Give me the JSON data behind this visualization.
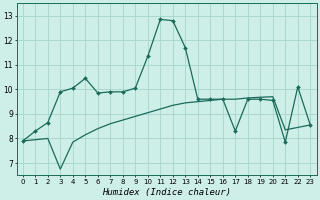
{
  "title": "",
  "xlabel": "Humidex (Indice chaleur)",
  "background_color": "#ceeee8",
  "grid_color": "#aad8d0",
  "line_color": "#1a6b5a",
  "xlim": [
    -0.5,
    23.5
  ],
  "ylim": [
    6.5,
    13.5
  ],
  "yticks": [
    7,
    8,
    9,
    10,
    11,
    12,
    13
  ],
  "xticks": [
    0,
    1,
    2,
    3,
    4,
    5,
    6,
    7,
    8,
    9,
    10,
    11,
    12,
    13,
    14,
    15,
    16,
    17,
    18,
    19,
    20,
    21,
    22,
    23
  ],
  "series1_x": [
    0,
    1,
    2,
    3,
    4,
    5,
    6,
    7,
    8,
    9,
    10,
    11,
    12,
    13,
    14,
    15,
    16,
    17,
    18,
    19,
    20,
    21,
    22,
    23
  ],
  "series1_y": [
    7.9,
    8.3,
    8.65,
    9.9,
    10.05,
    10.45,
    9.85,
    9.9,
    9.9,
    10.05,
    11.35,
    12.85,
    12.8,
    11.7,
    9.6,
    9.6,
    9.6,
    8.3,
    9.6,
    9.6,
    9.55,
    7.85,
    10.1,
    8.55
  ],
  "series2_x": [
    0,
    1,
    2,
    3,
    4,
    5,
    6,
    7,
    8,
    9,
    10,
    11,
    12,
    13,
    14,
    15,
    16,
    17,
    18,
    19,
    20,
    21,
    22,
    23
  ],
  "series2_y": [
    7.9,
    7.95,
    8.0,
    6.75,
    7.85,
    8.15,
    8.4,
    8.6,
    8.75,
    8.9,
    9.05,
    9.2,
    9.35,
    9.45,
    9.5,
    9.55,
    9.6,
    9.6,
    9.65,
    9.68,
    9.7,
    8.35,
    8.45,
    8.55
  ]
}
